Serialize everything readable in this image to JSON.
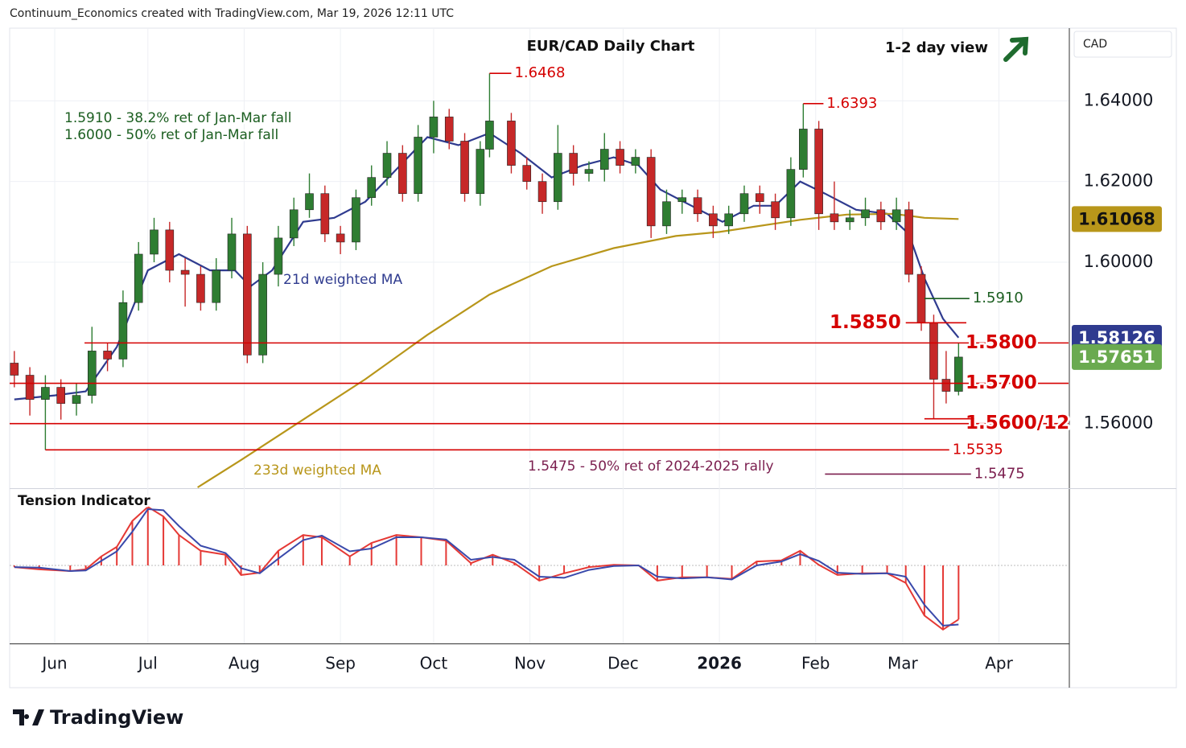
{
  "header": "Continuum_Economics created with TradingView.com, Mar 19, 2026 12:11 UTC",
  "logo": "TradingView",
  "chart_data": [
    {
      "type": "candlestick",
      "title": "EUR/CAD Daily Chart",
      "subtitle": "1-2 day view",
      "currency": "CAD",
      "x": [
        -13,
        -8,
        -3,
        2,
        7,
        12,
        17,
        22,
        27,
        32,
        37,
        42,
        47,
        52,
        57,
        62,
        67,
        72,
        77,
        82,
        87,
        92,
        97,
        102,
        107,
        112,
        117,
        122,
        127,
        132,
        137,
        140,
        147,
        152,
        157,
        162,
        167,
        172,
        177,
        182,
        187,
        192,
        197,
        202,
        207,
        212,
        217,
        222,
        227,
        232,
        237,
        241,
        246,
        251,
        256,
        261,
        266,
        271,
        275,
        279,
        283,
        287,
        291
      ],
      "open": [
        1.575,
        1.572,
        1.566,
        1.569,
        1.565,
        1.567,
        1.578,
        1.576,
        1.59,
        1.602,
        1.608,
        1.598,
        1.597,
        1.59,
        1.598,
        1.607,
        1.577,
        1.597,
        1.606,
        1.613,
        1.617,
        1.607,
        1.605,
        1.616,
        1.621,
        1.627,
        1.617,
        1.631,
        1.636,
        1.63,
        1.617,
        1.628,
        1.635,
        1.624,
        1.62,
        1.615,
        1.627,
        1.622,
        1.623,
        1.628,
        1.624,
        1.626,
        1.609,
        1.615,
        1.616,
        1.612,
        1.609,
        1.612,
        1.617,
        1.615,
        1.611,
        1.623,
        1.633,
        1.612,
        1.61,
        1.611,
        1.613,
        1.61,
        1.613,
        1.597,
        1.585,
        1.571,
        1.568
      ],
      "high": [
        1.578,
        1.574,
        1.572,
        1.571,
        1.57,
        1.584,
        1.58,
        1.593,
        1.605,
        1.611,
        1.61,
        1.601,
        1.599,
        1.601,
        1.611,
        1.609,
        1.6,
        1.609,
        1.616,
        1.622,
        1.619,
        1.609,
        1.618,
        1.624,
        1.63,
        1.629,
        1.634,
        1.64,
        1.638,
        1.632,
        1.63,
        1.6468,
        1.637,
        1.626,
        1.622,
        1.634,
        1.629,
        1.625,
        1.632,
        1.63,
        1.628,
        1.628,
        1.618,
        1.618,
        1.618,
        1.614,
        1.614,
        1.619,
        1.619,
        1.617,
        1.626,
        1.6393,
        1.635,
        1.62,
        1.613,
        1.616,
        1.615,
        1.616,
        1.615,
        1.599,
        1.587,
        1.578,
        1.58
      ],
      "low": [
        1.569,
        1.562,
        1.5535,
        1.561,
        1.562,
        1.565,
        1.573,
        1.574,
        1.588,
        1.6,
        1.595,
        1.589,
        1.588,
        1.588,
        1.596,
        1.575,
        1.575,
        1.594,
        1.604,
        1.611,
        1.605,
        1.602,
        1.603,
        1.614,
        1.619,
        1.615,
        1.615,
        1.627,
        1.628,
        1.615,
        1.614,
        1.626,
        1.622,
        1.618,
        1.612,
        1.613,
        1.619,
        1.62,
        1.62,
        1.622,
        1.622,
        1.606,
        1.607,
        1.612,
        1.61,
        1.606,
        1.607,
        1.61,
        1.612,
        1.608,
        1.609,
        1.621,
        1.608,
        1.608,
        1.608,
        1.609,
        1.608,
        1.608,
        1.595,
        1.583,
        1.5612,
        1.565,
        1.567
      ],
      "close": [
        1.572,
        1.566,
        1.569,
        1.565,
        1.567,
        1.578,
        1.576,
        1.59,
        1.602,
        1.608,
        1.598,
        1.597,
        1.59,
        1.598,
        1.607,
        1.577,
        1.597,
        1.606,
        1.613,
        1.617,
        1.607,
        1.605,
        1.616,
        1.621,
        1.627,
        1.617,
        1.631,
        1.636,
        1.63,
        1.617,
        1.628,
        1.635,
        1.624,
        1.62,
        1.615,
        1.627,
        1.622,
        1.623,
        1.628,
        1.624,
        1.626,
        1.609,
        1.615,
        1.616,
        1.612,
        1.609,
        1.612,
        1.617,
        1.615,
        1.611,
        1.623,
        1.633,
        1.612,
        1.61,
        1.611,
        1.613,
        1.61,
        1.613,
        1.597,
        1.585,
        1.571,
        1.568,
        1.5765
      ],
      "up_color": "#2e7d32",
      "down_color": "#c62828",
      "series": [
        {
          "name": "21d weighted MA",
          "color": "#2f3b8f",
          "x": [
            -13,
            0,
            10,
            20,
            30,
            40,
            50,
            58,
            63,
            70,
            80,
            90,
            100,
            110,
            120,
            130,
            140,
            150,
            160,
            170,
            180,
            188,
            195,
            205,
            215,
            225,
            232,
            240,
            248,
            258,
            268,
            275,
            280,
            286,
            291
          ],
          "values": [
            1.566,
            1.567,
            1.568,
            1.579,
            1.598,
            1.602,
            1.598,
            1.598,
            1.594,
            1.598,
            1.61,
            1.611,
            1.615,
            1.623,
            1.631,
            1.629,
            1.632,
            1.627,
            1.621,
            1.624,
            1.626,
            1.624,
            1.618,
            1.614,
            1.61,
            1.614,
            1.614,
            1.62,
            1.617,
            1.613,
            1.612,
            1.607,
            1.596,
            1.586,
            1.5813
          ]
        },
        {
          "name": "233d weighted MA",
          "color": "#b8961a",
          "x": [
            46,
            60,
            80,
            100,
            120,
            140,
            160,
            180,
            200,
            214,
            240,
            255,
            270,
            280,
            291
          ],
          "values": [
            1.5442,
            1.551,
            1.561,
            1.571,
            1.582,
            1.592,
            1.599,
            1.6035,
            1.6065,
            1.6075,
            1.6105,
            1.6118,
            1.612,
            1.611,
            1.6107
          ]
        }
      ],
      "xlim": [
        -14.5,
        326.4
      ],
      "xticks": [
        {
          "value": 0,
          "label": "Jun"
        },
        {
          "value": 30,
          "label": "Jul"
        },
        {
          "value": 61,
          "label": "Aug"
        },
        {
          "value": 92,
          "label": "Sep"
        },
        {
          "value": 122,
          "label": "Oct"
        },
        {
          "value": 153,
          "label": "Nov"
        },
        {
          "value": 183,
          "label": "Dec"
        },
        {
          "value": 214,
          "label": "2026"
        },
        {
          "value": 245,
          "label": "Feb"
        },
        {
          "value": 273,
          "label": "Mar"
        },
        {
          "value": 304,
          "label": "Apr"
        }
      ],
      "ylim": [
        1.544,
        1.658
      ],
      "yticks": [
        {
          "value": 1.56,
          "label": "1.56000"
        },
        {
          "value": 1.6,
          "label": "1.60000"
        },
        {
          "value": 1.62,
          "label": "1.62000"
        },
        {
          "value": 1.64,
          "label": "1.64000"
        }
      ],
      "grid": true,
      "levels": [
        {
          "value": 1.58,
          "label": "1.5800",
          "color": "#d50000",
          "from": 9.6,
          "emphasis": true
        },
        {
          "value": 1.57,
          "label": "1.5700",
          "color": "#d50000",
          "emphasis": true
        },
        {
          "value": 1.56,
          "label": "1.5600/12",
          "color": "#d50000",
          "emphasis": true
        },
        {
          "value": 1.5612,
          "color": "#d50000",
          "from": 280,
          "to": 296
        },
        {
          "value": 1.5535,
          "label": "1.5535",
          "color": "#d50000",
          "from": -3,
          "to": 288
        },
        {
          "value": 1.585,
          "label": "1.5850",
          "color": "#d50000",
          "from": 274,
          "to": 293.5,
          "emphasis": true,
          "label_position": "left"
        },
        {
          "value": 1.591,
          "label": "1.5910",
          "color": "#1b5e20",
          "from": 280,
          "to": 294.5
        },
        {
          "value": 1.5475,
          "label": "1.5475",
          "color": "#7b1f4f",
          "from": 248,
          "to": 295
        },
        {
          "value": 1.6468,
          "label": "1.6468",
          "color": "#d50000",
          "from": 140,
          "to": 147
        },
        {
          "value": 1.6393,
          "label": "1.6393",
          "color": "#d50000",
          "from": 241,
          "to": 247.5
        }
      ],
      "price_labels": [
        {
          "value": 1.61068,
          "label": "1.61068",
          "color": "#b8961a",
          "text_color": "#111111"
        },
        {
          "value": 1.58126,
          "label": "1.58126",
          "color": "#2f3b8f",
          "text_color": "#ffffff"
        },
        {
          "value": 1.57651,
          "label": "1.57651",
          "color": "#6aaa50",
          "text_color": "#ffffff"
        }
      ],
      "annotations": [
        "1.5910 - 38.2% ret of Jan-Mar fall",
        "1.6000 - 50% ret of Jan-Mar fall",
        "1.5475 - 50% ret of 2024-2025 rally"
      ]
    },
    {
      "type": "tension",
      "title": "Tension Indicator",
      "x": [
        -13,
        -5,
        5,
        10,
        15,
        20,
        25,
        30,
        35,
        40,
        47,
        55,
        60,
        66,
        72,
        80,
        86,
        95,
        102,
        110,
        118,
        126,
        134,
        141,
        148,
        156,
        164,
        172,
        180,
        188,
        194,
        202,
        210,
        218,
        226,
        234,
        240,
        246,
        252,
        260,
        268,
        274,
        280,
        286,
        291
      ],
      "series": [
        {
          "color": "#e53935",
          "values": [
            -0.03,
            -0.07,
            -0.1,
            -0.07,
            0.16,
            0.33,
            0.79,
            1.04,
            0.87,
            0.54,
            0.26,
            0.19,
            -0.17,
            -0.13,
            0.26,
            0.54,
            0.5,
            0.16,
            0.4,
            0.54,
            0.5,
            0.44,
            0.04,
            0.19,
            0.04,
            -0.27,
            -0.14,
            -0.03,
            0.01,
            0,
            -0.27,
            -0.21,
            -0.21,
            -0.24,
            0.07,
            0.09,
            0.26,
            0.01,
            -0.17,
            -0.14,
            -0.14,
            -0.31,
            -0.89,
            -1.14,
            -0.96
          ]
        },
        {
          "color": "#3949ab",
          "values": [
            -0.03,
            -0.04,
            -0.1,
            -0.09,
            0.08,
            0.25,
            0.6,
            1.0,
            0.98,
            0.7,
            0.35,
            0.22,
            -0.05,
            -0.14,
            0.12,
            0.45,
            0.53,
            0.25,
            0.3,
            0.5,
            0.5,
            0.46,
            0.1,
            0.15,
            0.1,
            -0.2,
            -0.22,
            -0.08,
            -0.01,
            0,
            -0.2,
            -0.23,
            -0.21,
            -0.25,
            0,
            0.07,
            0.2,
            0.08,
            -0.13,
            -0.15,
            -0.14,
            -0.2,
            -0.7,
            -1.07,
            -1.05
          ]
        }
      ],
      "histogram_color": "#e53935",
      "xlim": [
        -14.5,
        326.4
      ],
      "ylim": [
        -1.386,
        1.357
      ]
    }
  ]
}
